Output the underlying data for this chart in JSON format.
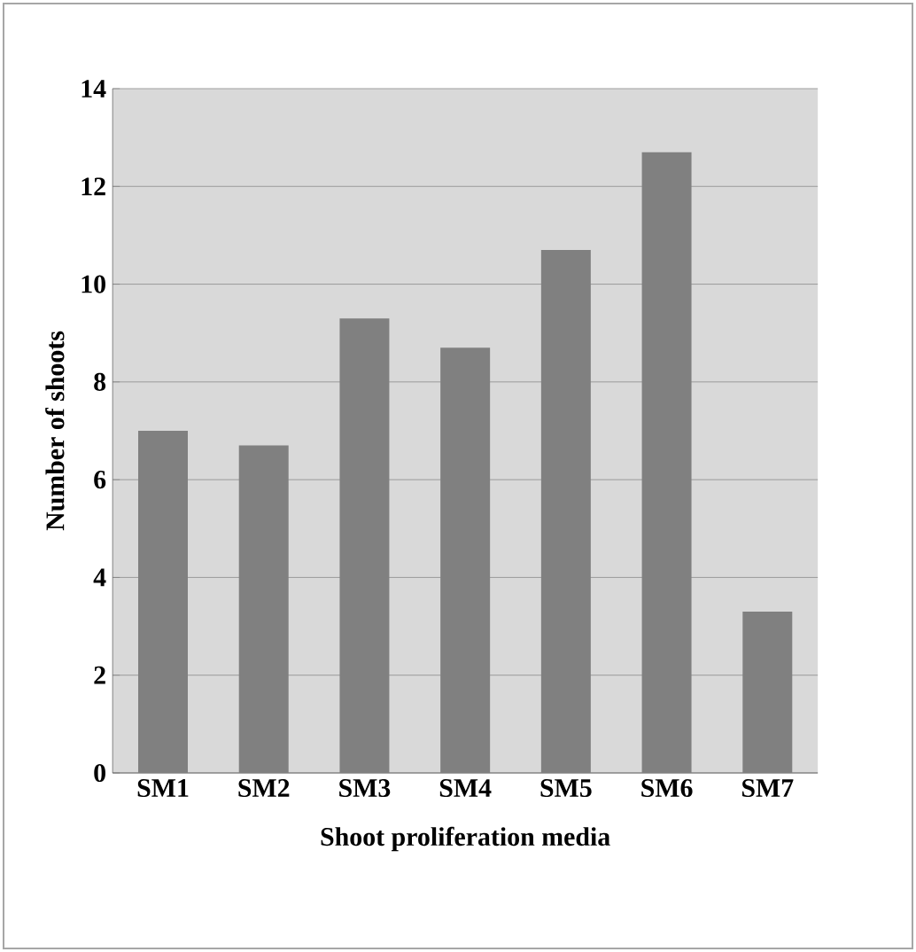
{
  "chart_data": {
    "type": "bar",
    "xlabel": "Shoot proliferation media",
    "ylabel": "Number of shoots",
    "categories": [
      "SM1",
      "SM2",
      "SM3",
      "SM4",
      "SM5",
      "SM6",
      "SM7"
    ],
    "values": [
      7.0,
      6.7,
      9.3,
      8.7,
      10.7,
      12.7,
      3.3
    ],
    "color": "#808080",
    "ylim": [
      0,
      14
    ],
    "yticks": [
      0,
      2,
      4,
      6,
      8,
      10,
      12,
      14
    ],
    "grid": "y"
  }
}
